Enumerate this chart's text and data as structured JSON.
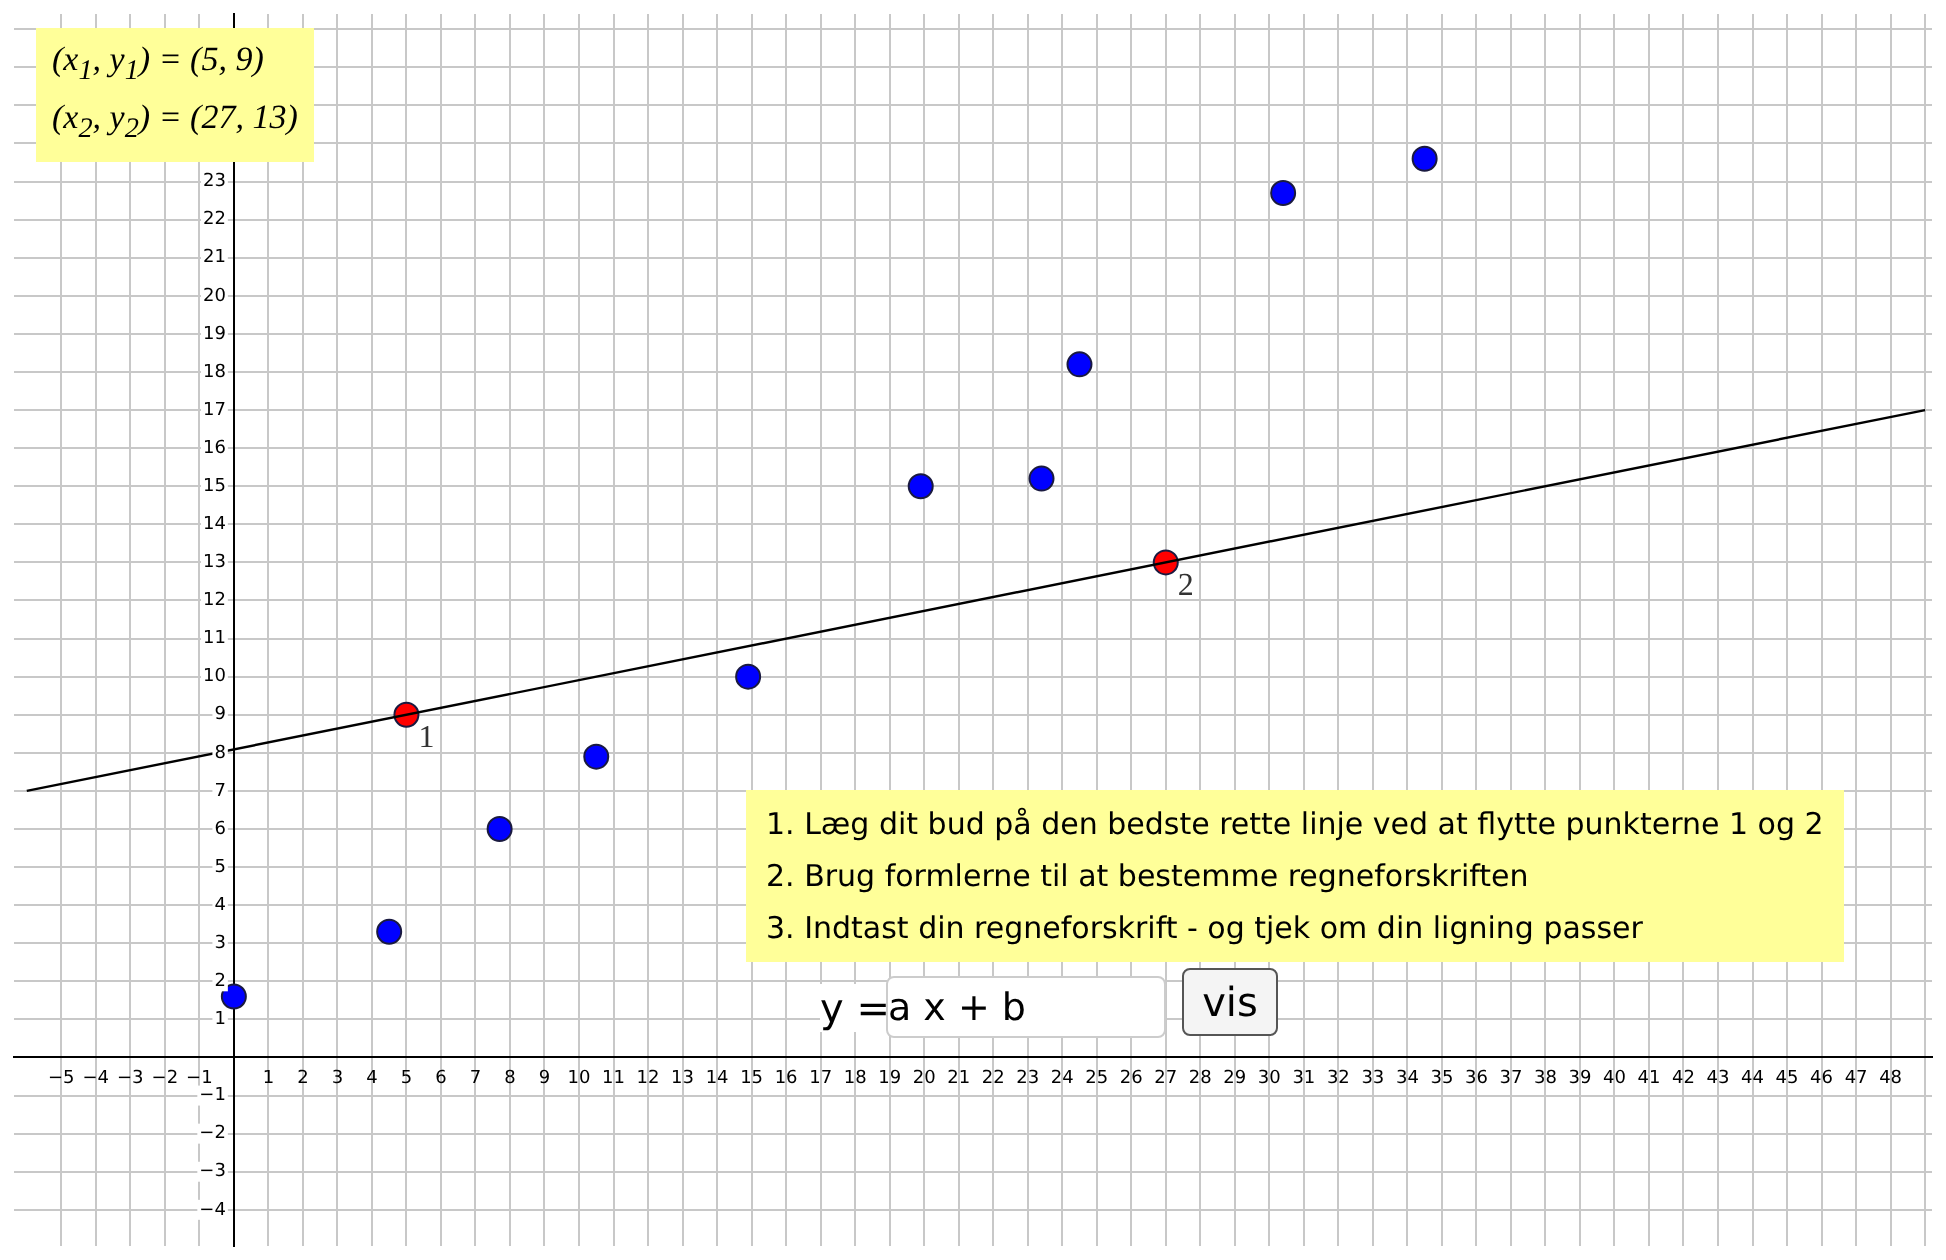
{
  "chart_data": {
    "type": "scatter",
    "xlim": [
      -6.37,
      49.2
    ],
    "ylim": [
      -4.95,
      27.4
    ],
    "xticks": [
      -5,
      -4,
      -3,
      -2,
      -1,
      {
        "value": 0,
        "label": null
      },
      1,
      2,
      3,
      4,
      5,
      6,
      7,
      8,
      9,
      10,
      11,
      12,
      13,
      14,
      15,
      16,
      17,
      18,
      19,
      20,
      21,
      22,
      23,
      24,
      25,
      26,
      27,
      28,
      29,
      30,
      31,
      32,
      33,
      34,
      35,
      36,
      37,
      38,
      39,
      40,
      41,
      42,
      43,
      44,
      45,
      46,
      47,
      48,
      {
        "value": 49,
        "label": null
      }
    ],
    "yticks": [
      -4,
      -3,
      -2,
      -1,
      {
        "value": 0,
        "label": null
      },
      1,
      2,
      3,
      4,
      5,
      6,
      7,
      8,
      9,
      10,
      11,
      12,
      13,
      14,
      15,
      16,
      17,
      18,
      19,
      20,
      21,
      22,
      23,
      {
        "value": 24,
        "label": null
      },
      {
        "value": 25,
        "label": null
      },
      {
        "value": 26,
        "label": null
      },
      {
        "value": 27,
        "label": null
      }
    ],
    "grid": true,
    "legend": false,
    "marker": "circle",
    "series": [
      {
        "type": "line",
        "color": "#000000",
        "x": [
          -6,
          49
        ],
        "values": [
          7,
          17
        ],
        "line_style": "solid",
        "marker": "none"
      },
      {
        "color": "#0000ff",
        "x": [
          0,
          4.5,
          7.7,
          10.5,
          14.9,
          19.9,
          23.4,
          24.5,
          30.4,
          34.5
        ],
        "values": [
          1.6,
          3.3,
          6.0,
          7.9,
          10.0,
          15.0,
          15.2,
          18.2,
          22.7,
          23.6
        ]
      },
      {
        "color": "#ff0000",
        "x": [
          5,
          27
        ],
        "values": [
          9,
          13
        ]
      }
    ],
    "annotations": [
      {
        "text": "1",
        "x": 5,
        "y": 9
      },
      {
        "text": "2",
        "x": 27,
        "y": 13
      },
      "(x$_{1}$, y$_{1}$) = (5, 9)",
      "(x$_{2}$, y$_{2}$) = (27, 13)",
      "1.  Læg dit bud på den bedste rette linje ved at flytte punkterne 1 og 2",
      "2.  Brug formlerne til at bestemme regneforskriften",
      "3.  Indtast din regneforskrift - og tjek om din ligning passer",
      "y =",
      "a x + b",
      "vis"
    ]
  }
}
